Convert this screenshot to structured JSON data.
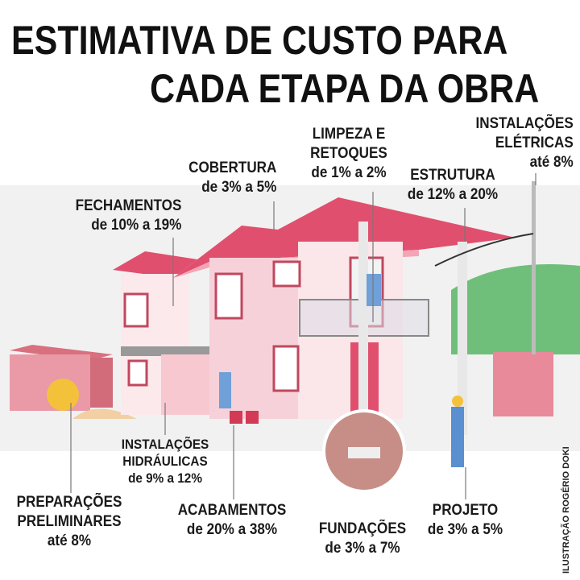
{
  "title": {
    "line1": "ESTIMATIVA DE CUSTO PARA",
    "line2": "CADA ETAPA DA OBRA"
  },
  "stages": {
    "fechamentos": {
      "name": "FECHAMENTOS",
      "range": "de 10% a 19%"
    },
    "cobertura": {
      "name": "COBERTURA",
      "range": "de 3% a 5%"
    },
    "limpeza": {
      "name1": "LIMPEZA E",
      "name2": "RETOQUES",
      "range": "de 1% a 2%"
    },
    "estrutura": {
      "name": "ESTRUTURA",
      "range": "de 12% a 20%"
    },
    "eletricas": {
      "name1": "INSTALAÇÕES",
      "name2": "ELÉTRICAS",
      "range": "até 8%"
    },
    "hidraulicas": {
      "name1": "INSTALAÇÕES",
      "name2": "HIDRÁULICAS",
      "range": "de 9% a 12%"
    },
    "preparacoes": {
      "name1": "PREPARAÇÕES",
      "name2": "PRELIMINARES",
      "range": "até 8%"
    },
    "acabamentos": {
      "name": "ACABAMENTOS",
      "range": "de 20% a 38%"
    },
    "fundacoes": {
      "name": "FUNDAÇÕES",
      "range": "de 3% a 7%"
    },
    "projeto": {
      "name": "PROJETO",
      "range": "de 3% a 5%"
    }
  },
  "credit": "ILUSTRAÇÃO ROGÉRIO DOKI",
  "colors": {
    "roof": "#e0506e",
    "wall": "#f6d3da",
    "ground": "#ececec",
    "hill": "#6fbf7a"
  }
}
